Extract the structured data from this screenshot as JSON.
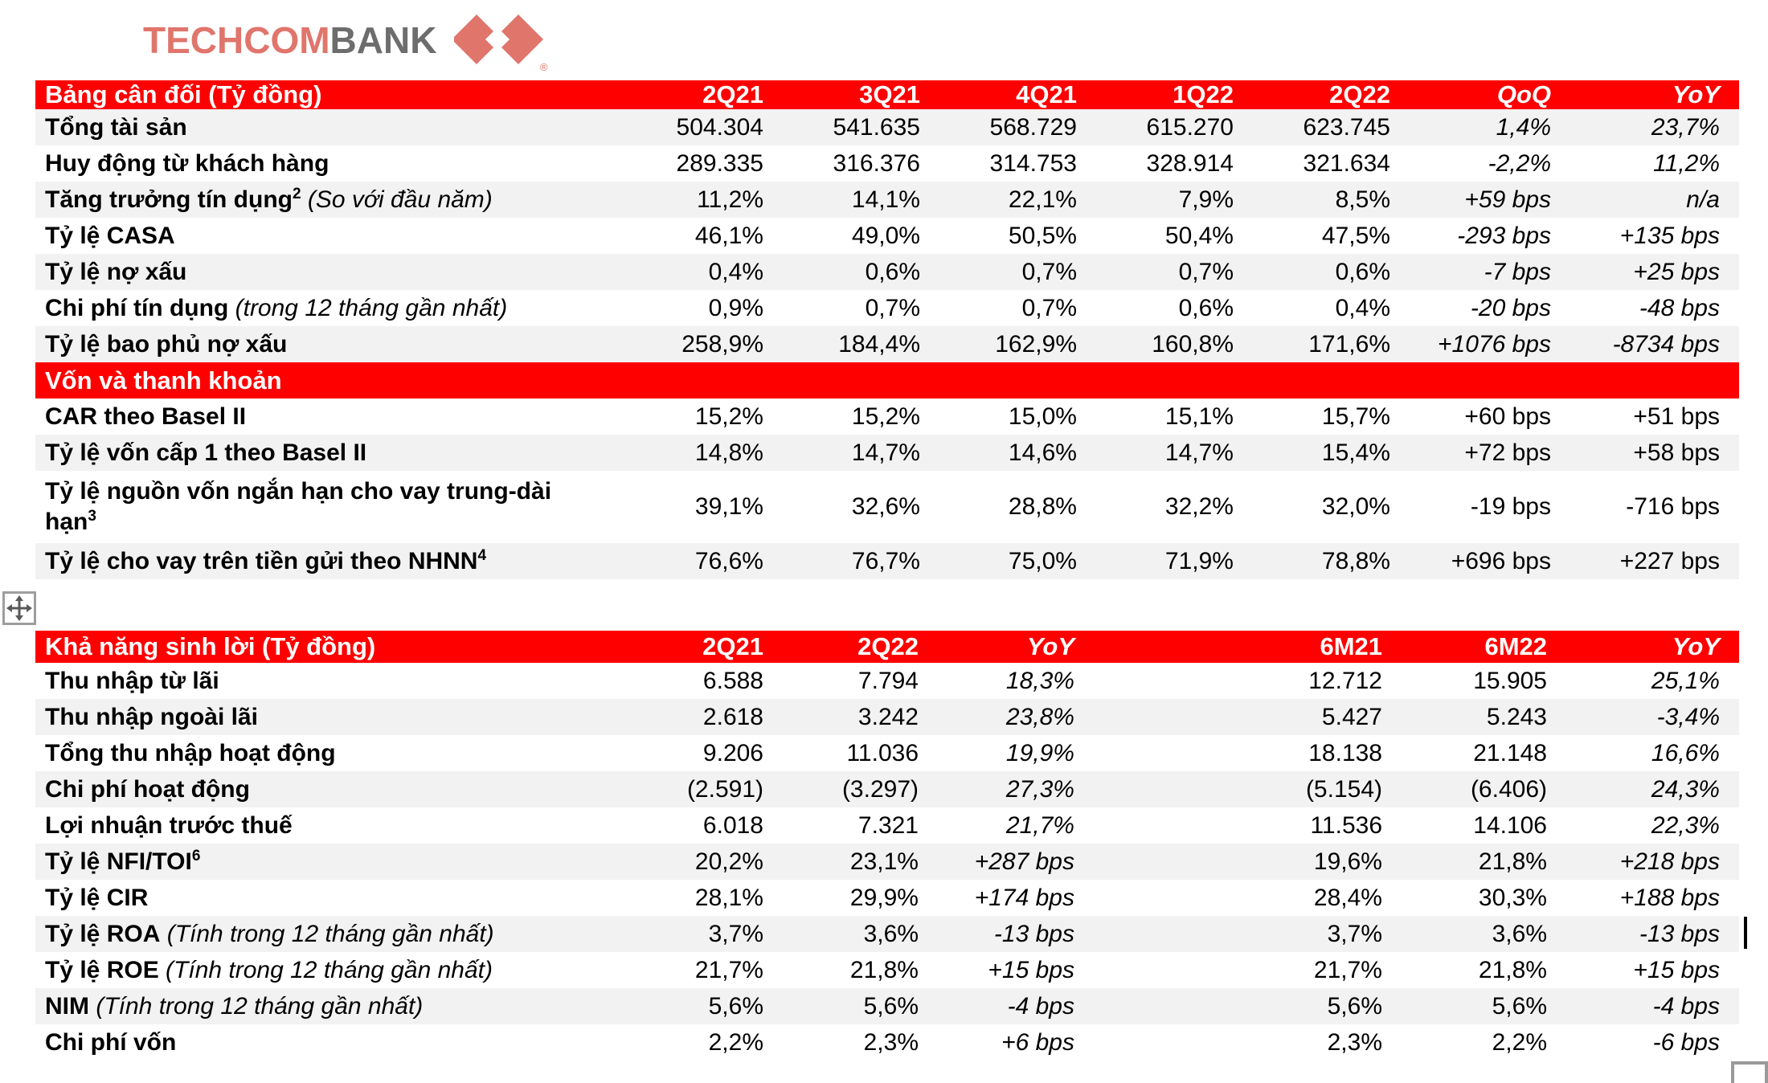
{
  "logo": {
    "brand_red": "TECHCOM",
    "brand_gray": "BANK",
    "registered": "®"
  },
  "colors": {
    "header_red": "#fe0000",
    "stripe_gray": "#f2f2f2",
    "logo_red": "#e0756c",
    "logo_gray": "#6d6d6d",
    "text": "#000000"
  },
  "icons": {
    "logo_mark": "techcombank-double-diamond",
    "move_handle": "four-arrow-move",
    "text_cursor": "caret",
    "resize_handle": "selection-box"
  },
  "balance_table": {
    "title": "Bảng cân đối (Tỷ đồng)",
    "columns": [
      {
        "label": "2Q21",
        "italic": false
      },
      {
        "label": "3Q21",
        "italic": false
      },
      {
        "label": "4Q21",
        "italic": false
      },
      {
        "label": "1Q22",
        "italic": false
      },
      {
        "label": "2Q22",
        "italic": false
      },
      {
        "label": "QoQ",
        "italic": true
      },
      {
        "label": "YoY",
        "italic": true
      }
    ],
    "rows": [
      {
        "label": "Tổng tài sản",
        "sup": "",
        "note": "",
        "shade": true,
        "values": [
          "504.304",
          "541.635",
          "568.729",
          "615.270",
          "623.745",
          "1,4%",
          "23,7%"
        ],
        "italic_cols": [
          5,
          6
        ]
      },
      {
        "label": "Huy động từ khách hàng",
        "sup": "",
        "note": "",
        "shade": false,
        "values": [
          "289.335",
          "316.376",
          "314.753",
          "328.914",
          "321.634",
          "-2,2%",
          "11,2%"
        ],
        "italic_cols": [
          5,
          6
        ]
      },
      {
        "label": "Tăng trưởng tín dụng",
        "sup": "2",
        "note": "(So với đầu năm)",
        "shade": true,
        "values": [
          "11,2%",
          "14,1%",
          "22,1%",
          "7,9%",
          "8,5%",
          "+59 bps",
          "n/a"
        ],
        "italic_cols": [
          5,
          6
        ]
      },
      {
        "label": "Tỷ lệ CASA",
        "sup": "",
        "note": "",
        "shade": false,
        "values": [
          "46,1%",
          "49,0%",
          "50,5%",
          "50,4%",
          "47,5%",
          "-293 bps",
          "+135 bps"
        ],
        "italic_cols": [
          5,
          6
        ]
      },
      {
        "label": "Tỷ lệ nợ xấu",
        "sup": "",
        "note": "",
        "shade": true,
        "values": [
          "0,4%",
          "0,6%",
          "0,7%",
          "0,7%",
          "0,6%",
          "-7 bps",
          "+25 bps"
        ],
        "italic_cols": [
          5,
          6
        ]
      },
      {
        "label": "Chi phí tín dụng",
        "sup": "",
        "note": "(trong 12 tháng gần nhất)",
        "shade": false,
        "values": [
          "0,9%",
          "0,7%",
          "0,7%",
          "0,6%",
          "0,4%",
          "-20 bps",
          "-48 bps"
        ],
        "italic_cols": [
          5,
          6
        ]
      },
      {
        "label": "Tỷ lệ bao phủ nợ xấu",
        "sup": "",
        "note": "",
        "shade": true,
        "values": [
          "258,9%",
          "184,4%",
          "162,9%",
          "160,8%",
          "171,6%",
          "+1076 bps",
          "-8734 bps"
        ],
        "italic_cols": [
          5,
          6
        ]
      },
      {
        "section": "Vốn và thanh khoản"
      },
      {
        "label": "CAR theo Basel II",
        "sup": "",
        "note": "",
        "shade": false,
        "values": [
          "15,2%",
          "15,2%",
          "15,0%",
          "15,1%",
          "15,7%",
          "+60 bps",
          "+51 bps"
        ],
        "italic_cols": []
      },
      {
        "label": "Tỷ lệ vốn cấp 1 theo Basel II",
        "sup": "",
        "note": "",
        "shade": true,
        "values": [
          "14,8%",
          "14,7%",
          "14,6%",
          "14,7%",
          "15,4%",
          "+72 bps",
          "+58 bps"
        ],
        "italic_cols": []
      },
      {
        "label": "Tỷ lệ nguồn vốn ngắn hạn cho vay trung-dài hạn",
        "sup": "3",
        "note": "",
        "shade": false,
        "tall": true,
        "values": [
          "39,1%",
          "32,6%",
          "28,8%",
          "32,2%",
          "32,0%",
          "-19 bps",
          "-716 bps"
        ],
        "italic_cols": []
      },
      {
        "label": "Tỷ lệ cho vay trên tiền gửi theo NHNN",
        "sup": "4",
        "note": "",
        "shade": true,
        "values": [
          "76,6%",
          "76,7%",
          "75,0%",
          "71,9%",
          "78,8%",
          "+696 bps",
          "+227 bps"
        ],
        "italic_cols": []
      }
    ]
  },
  "profitability_table": {
    "title": "Khả năng sinh lời (Tỷ đồng)",
    "columns": [
      {
        "label": "2Q21",
        "italic": false
      },
      {
        "label": "2Q22",
        "italic": false
      },
      {
        "label": "YoY",
        "italic": true
      },
      {
        "label": "6M21",
        "italic": false
      },
      {
        "label": "6M22",
        "italic": false
      },
      {
        "label": "YoY",
        "italic": true
      }
    ],
    "rows": [
      {
        "label": "Thu nhập từ lãi",
        "sup": "",
        "note": "",
        "shade": false,
        "values": [
          "6.588",
          "7.794",
          "18,3%",
          "12.712",
          "15.905",
          "25,1%"
        ],
        "italic_cols": [
          2,
          5
        ]
      },
      {
        "label": "Thu nhập ngoài lãi",
        "sup": "",
        "note": "",
        "shade": true,
        "values": [
          "2.618",
          "3.242",
          "23,8%",
          "5.427",
          "5.243",
          "-3,4%"
        ],
        "italic_cols": [
          2,
          5
        ]
      },
      {
        "label": "Tổng thu nhập hoạt động",
        "sup": "",
        "note": "",
        "shade": false,
        "values": [
          "9.206",
          "11.036",
          "19,9%",
          "18.138",
          "21.148",
          "16,6%"
        ],
        "italic_cols": [
          2,
          5
        ]
      },
      {
        "label": "Chi phí hoạt động",
        "sup": "",
        "note": "",
        "shade": true,
        "values": [
          "(2.591)",
          "(3.297)",
          "27,3%",
          "(5.154)",
          "(6.406)",
          "24,3%"
        ],
        "italic_cols": [
          2,
          5
        ]
      },
      {
        "label": "Lợi nhuận trước thuế",
        "sup": "",
        "note": "",
        "shade": false,
        "values": [
          "6.018",
          "7.321",
          "21,7%",
          "11.536",
          "14.106",
          "22,3%"
        ],
        "italic_cols": [
          2,
          5
        ]
      },
      {
        "label": "Tỷ lệ NFI/TOI",
        "sup": "6",
        "note": "",
        "shade": true,
        "values": [
          "20,2%",
          "23,1%",
          "+287 bps",
          "19,6%",
          "21,8%",
          "+218 bps"
        ],
        "italic_cols": [
          2,
          5
        ]
      },
      {
        "label": "Tỷ lệ CIR",
        "sup": "",
        "note": "",
        "shade": false,
        "values": [
          "28,1%",
          "29,9%",
          "+174 bps",
          "28,4%",
          "30,3%",
          "+188 bps"
        ],
        "italic_cols": [
          2,
          5
        ]
      },
      {
        "label": "Tỷ lệ ROA",
        "sup": "",
        "note": "(Tính trong 12 tháng gần nhất)",
        "shade": true,
        "values": [
          "3,7%",
          "3,6%",
          "-13 bps",
          "3,7%",
          "3,6%",
          "-13 bps"
        ],
        "italic_cols": [
          2,
          5
        ]
      },
      {
        "label": "Tỷ lệ ROE",
        "sup": "",
        "note": "(Tính trong 12 tháng gần nhất)",
        "shade": false,
        "values": [
          "21,7%",
          "21,8%",
          "+15 bps",
          "21,7%",
          "21,8%",
          "+15 bps"
        ],
        "italic_cols": [
          2,
          5
        ]
      },
      {
        "label": "NIM",
        "sup": "",
        "note": "(Tính trong 12 tháng gần nhất)",
        "shade": true,
        "values": [
          "5,6%",
          "5,6%",
          "-4 bps",
          "5,6%",
          "5,6%",
          "-4 bps"
        ],
        "italic_cols": [
          2,
          5
        ]
      },
      {
        "label": "Chi phí vốn",
        "sup": "",
        "note": "",
        "shade": false,
        "values": [
          "2,2%",
          "2,3%",
          "+6 bps",
          "2,3%",
          "2,2%",
          "-6 bps"
        ],
        "italic_cols": [
          2,
          5
        ]
      }
    ]
  }
}
